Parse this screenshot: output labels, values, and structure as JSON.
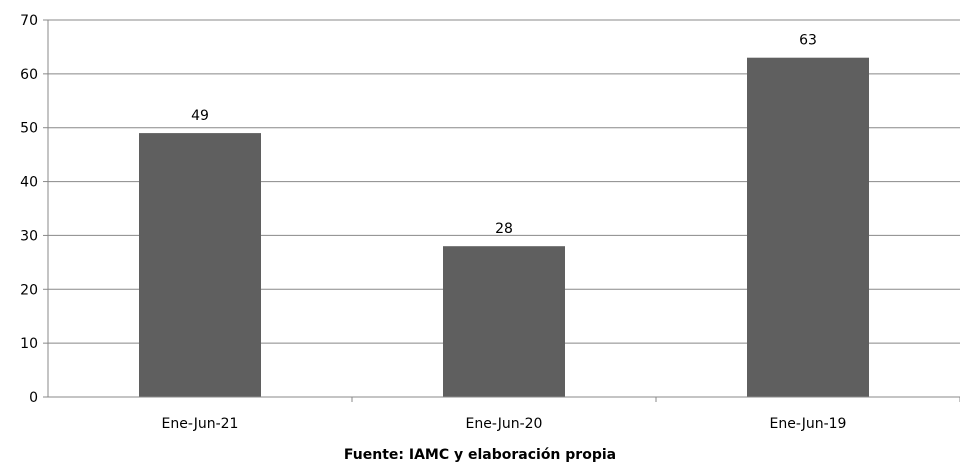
{
  "chart_data": {
    "type": "bar",
    "categories": [
      "Ene-Jun-21",
      "Ene-Jun-20",
      "Ene-Jun-19"
    ],
    "values": [
      49,
      28,
      63
    ],
    "title": "",
    "xlabel": "",
    "ylabel": "",
    "ylim": [
      0,
      70
    ],
    "yticks": [
      0,
      10,
      20,
      30,
      40,
      50,
      60,
      70
    ],
    "grid": true,
    "data_labels": true,
    "legend": "none",
    "bar_color": "#5f5f5f",
    "grid_color": "#888888",
    "source_note": "Fuente: IAMC y elaboración propia"
  }
}
